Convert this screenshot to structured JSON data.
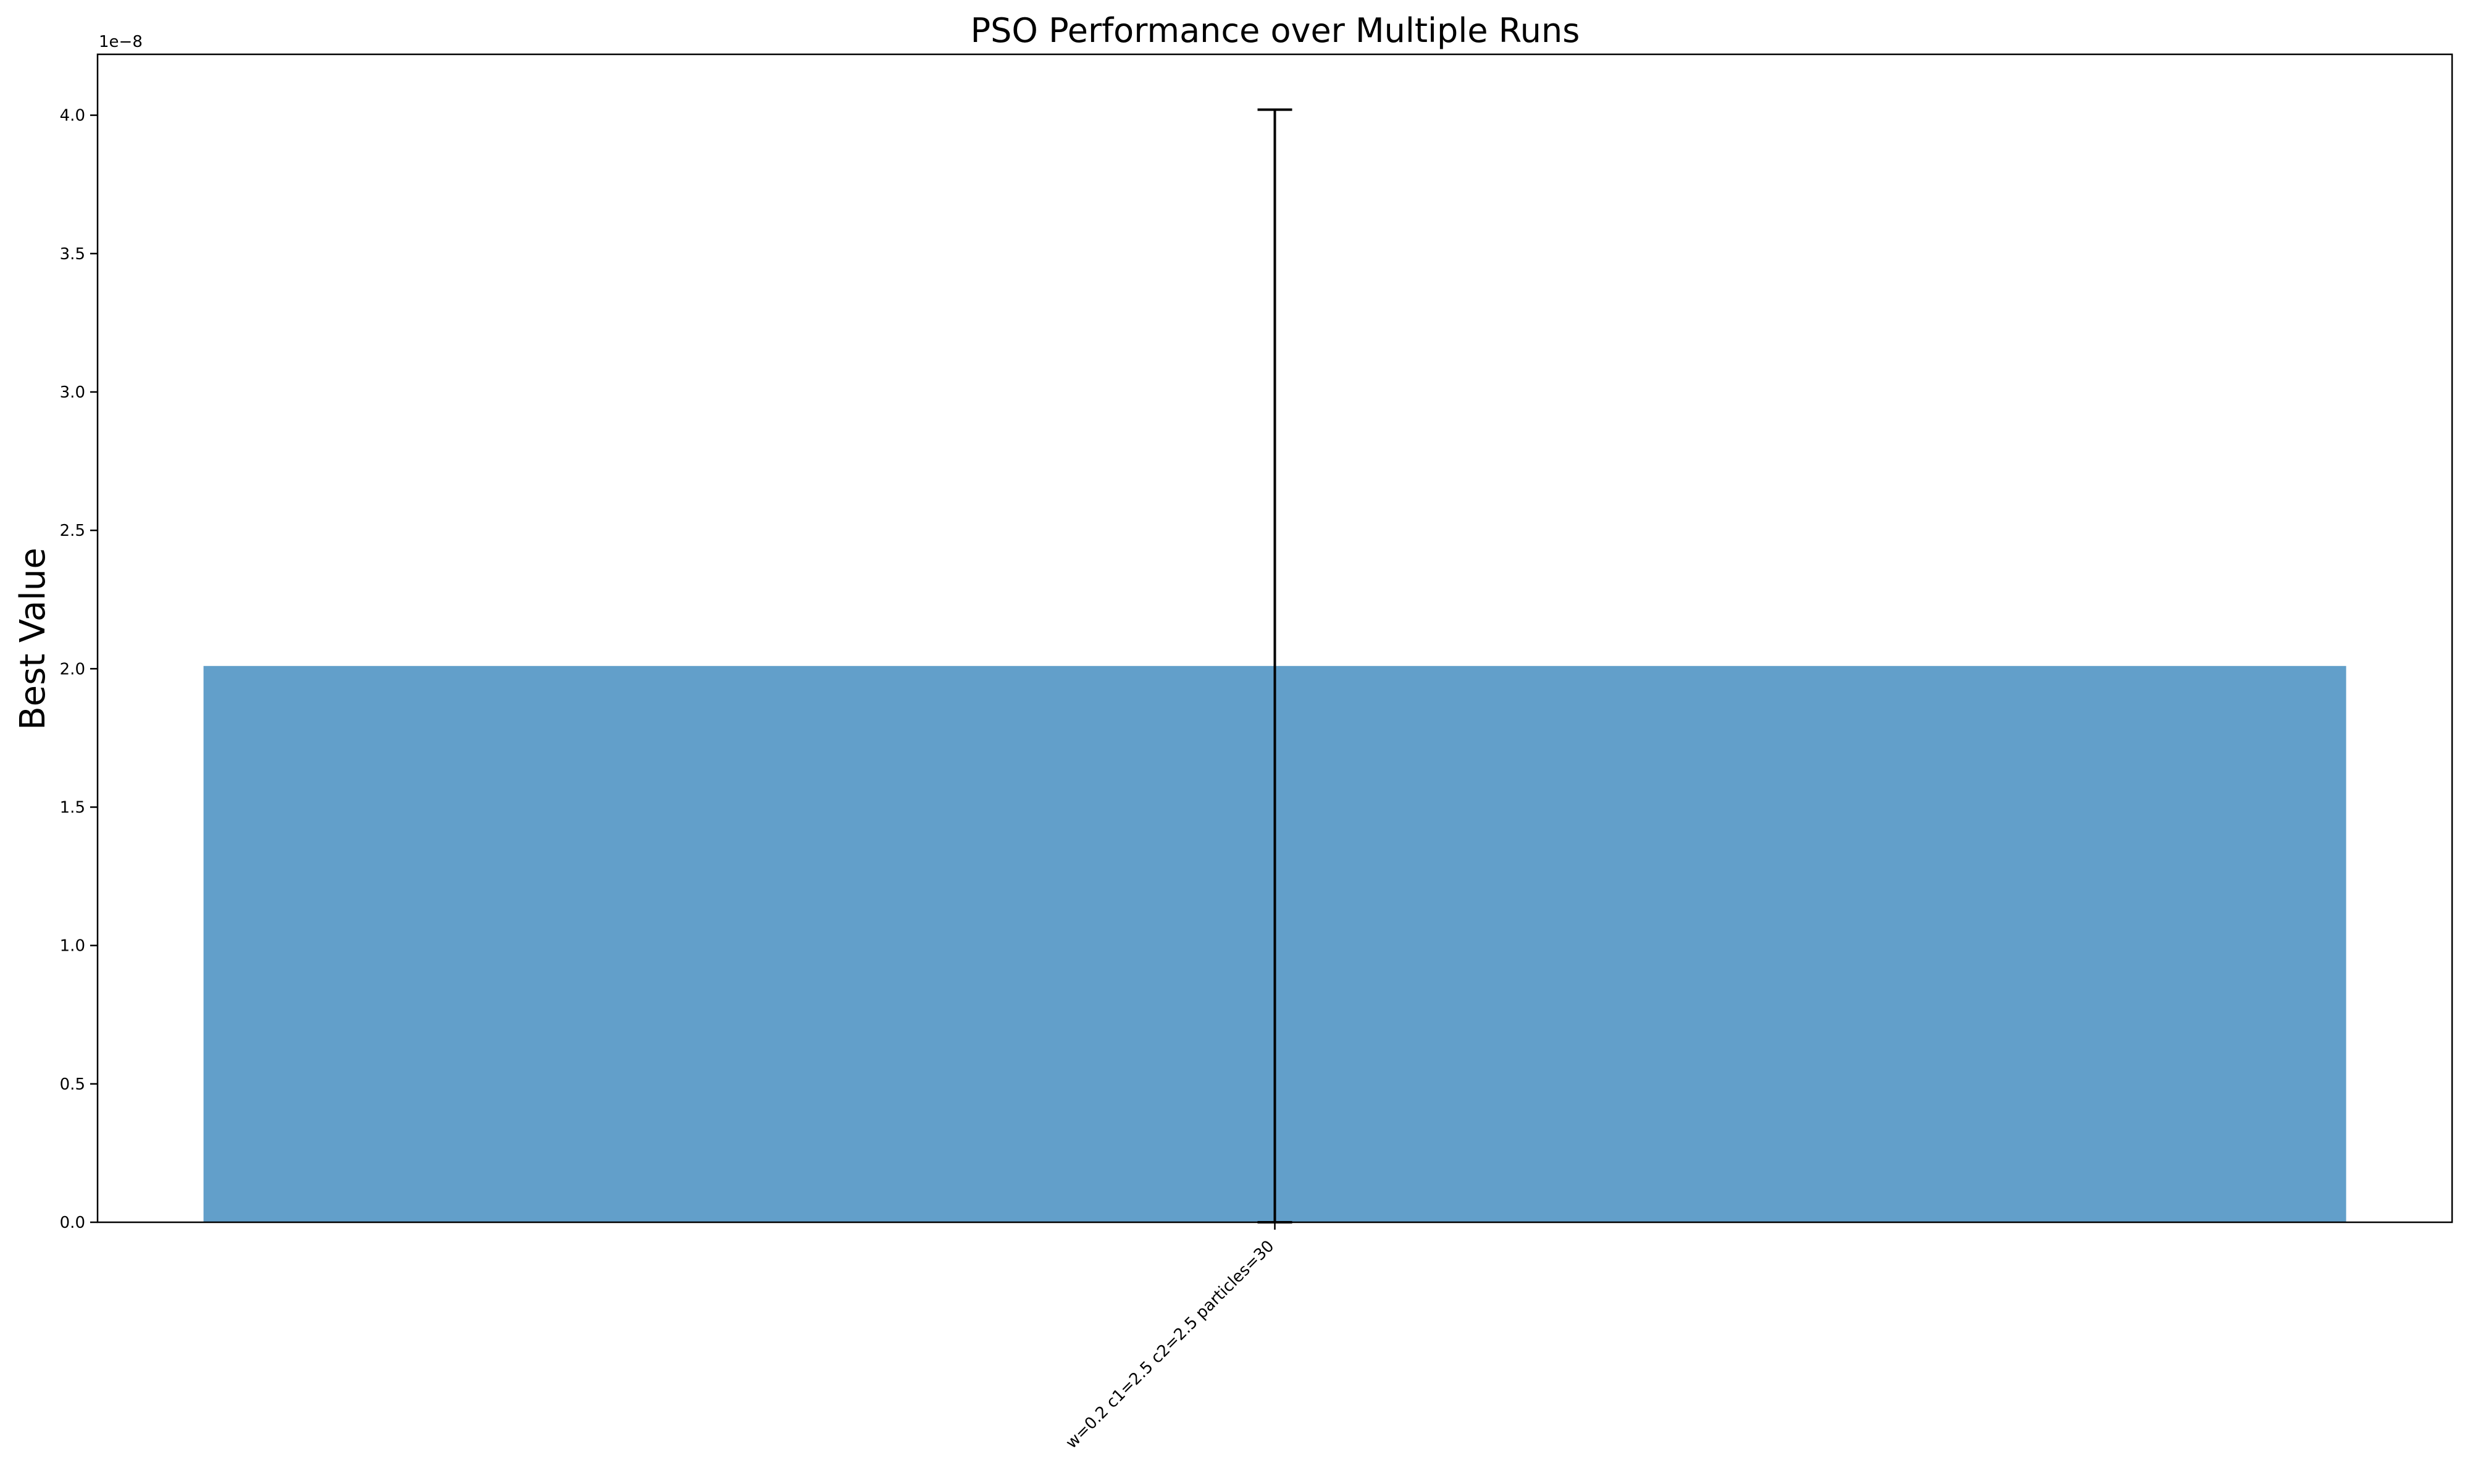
{
  "chart_data": {
    "type": "bar",
    "title": "PSO Performance over Multiple Runs",
    "xlabel": "",
    "ylabel": "Best Value",
    "categories": [
      "w=0.2 c1=2.5 c2=2.5 particles=30"
    ],
    "values": [
      2.01e-08
    ],
    "error_upper": [
      4.02e-08
    ],
    "error_lower": [
      0.0
    ],
    "ylim": [
      0,
      4.22e-08
    ],
    "y_scale_label": "1e−8",
    "yticks": [
      0,
      5e-09,
      1e-08,
      1.5e-08,
      2e-08,
      2.5e-08,
      3e-08,
      3.5e-08,
      4e-08
    ],
    "ytick_labels": [
      "0.0",
      "0.5",
      "1.0",
      "1.5",
      "2.0",
      "2.5",
      "3.0",
      "3.5",
      "4.0"
    ],
    "grid": false,
    "legend": "none",
    "colors": {
      "bar": "#629fca",
      "errorbar": "#000000",
      "axes": "#000000"
    }
  }
}
